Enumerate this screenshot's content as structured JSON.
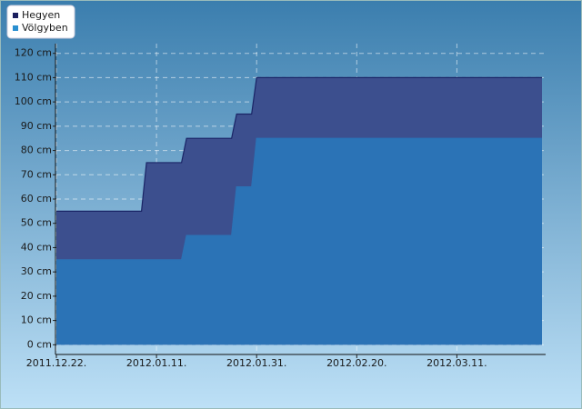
{
  "chart_data": {
    "type": "area",
    "x": [
      "2011.12.22.",
      "2012.01.08.",
      "2012.01.09.",
      "2012.01.16.",
      "2012.01.17.",
      "2012.01.26.",
      "2012.01.27.",
      "2012.01.30.",
      "2012.01.31.",
      "2012.03.28."
    ],
    "series": [
      {
        "name": "Hegyen",
        "color": "#3c4f8e",
        "line_color": "#1a2466",
        "legend_color": "#1b1f5e",
        "values": [
          55,
          55,
          75,
          75,
          85,
          85,
          95,
          95,
          110,
          110
        ]
      },
      {
        "name": "Völgyben",
        "color": "#2b73b6",
        "line_color": "#2b73b6",
        "legend_color": "#2a8fd0",
        "values": [
          35,
          35,
          35,
          35,
          45,
          45,
          65,
          65,
          85,
          85
        ]
      }
    ],
    "xlim": [
      "2011.12.22.",
      "2012.03.28."
    ],
    "xticks": [
      "2011.12.22.",
      "2012.01.11.",
      "2012.01.31.",
      "2012.02.20.",
      "2012.03.11."
    ],
    "ylim": [
      -4,
      124
    ],
    "yticks": [
      {
        "value": 0,
        "label": "0 cm"
      },
      {
        "value": 10,
        "label": "10 cm"
      },
      {
        "value": 20,
        "label": "20 cm"
      },
      {
        "value": 30,
        "label": "30 cm"
      },
      {
        "value": 40,
        "label": "40 cm"
      },
      {
        "value": 50,
        "label": "50 cm"
      },
      {
        "value": 60,
        "label": "60 cm"
      },
      {
        "value": 70,
        "label": "70 cm"
      },
      {
        "value": 80,
        "label": "80 cm"
      },
      {
        "value": 90,
        "label": "90 cm"
      },
      {
        "value": 100,
        "label": "100 cm"
      },
      {
        "value": 110,
        "label": "110 cm"
      },
      {
        "value": 120,
        "label": "120 cm"
      }
    ],
    "grid": true,
    "legend": "top-left"
  }
}
